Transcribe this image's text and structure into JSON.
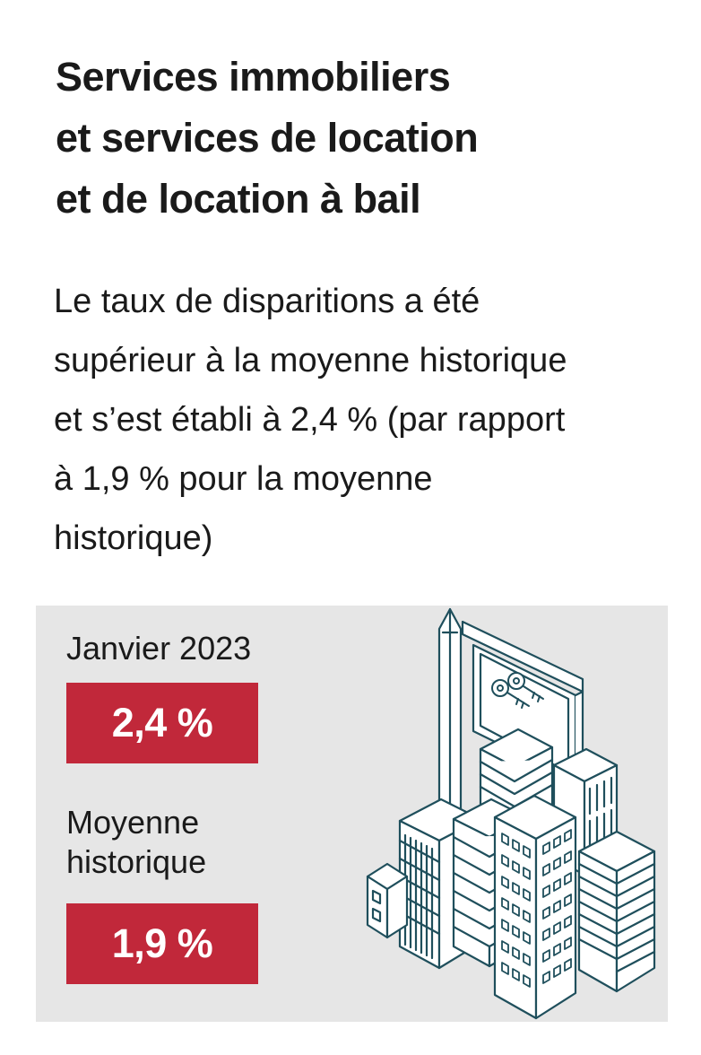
{
  "title_lines": [
    "Services immobiliers",
    "et services de location",
    "et de location à bail"
  ],
  "description_lines": [
    "Le taux de disparitions a été",
    "supérieur à la moyenne historique",
    "et s’est établi à 2,4 % (par rapport",
    "à 1,9 % pour la moyenne",
    "historique)"
  ],
  "stats": {
    "current": {
      "label": "Janvier 2023",
      "value_text": "2,4 %",
      "value": 2.4
    },
    "average": {
      "label_lines": [
        "Moyenne",
        "historique"
      ],
      "value_text": "1,9 %",
      "value": 1.9
    }
  },
  "illustration": {
    "icon": "buildings-with-keys-sign-icon"
  },
  "colors": {
    "badge": "#c1283a",
    "panel": "#e6e6e6",
    "illustration_stroke": "#1f4f5c"
  }
}
